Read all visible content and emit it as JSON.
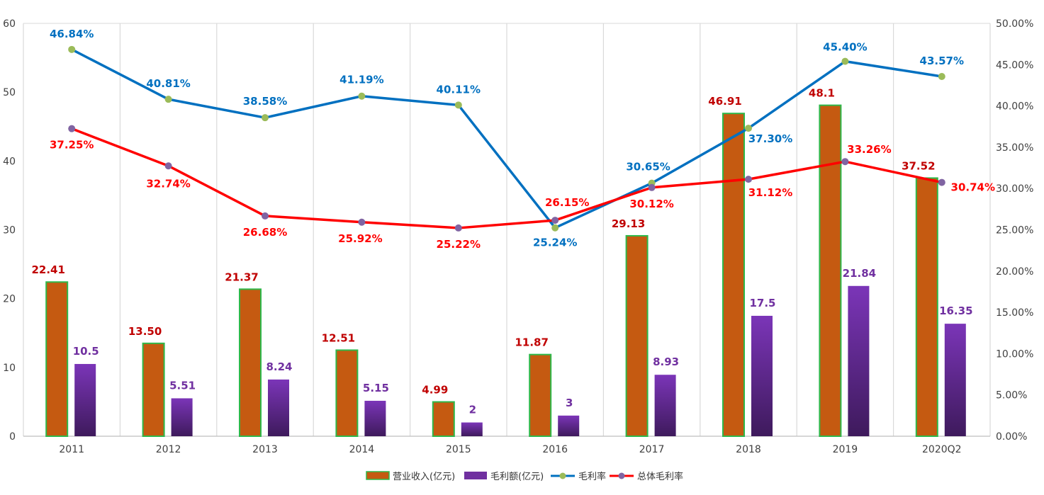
{
  "chart_data": {
    "type": "bar",
    "categories": [
      "2011",
      "2012",
      "2013",
      "2014",
      "2015",
      "2016",
      "2017",
      "2018",
      "2019",
      "2020Q2"
    ],
    "series": [
      {
        "name": "营业收入(亿元)",
        "kind": "bar",
        "axis": "left",
        "values": [
          22.41,
          13.5,
          21.37,
          12.51,
          4.99,
          11.87,
          29.13,
          46.91,
          48.1,
          37.52
        ],
        "labels": [
          "22.41",
          "13.50",
          "21.37",
          "12.51",
          "4.99",
          "11.87",
          "29.13",
          "46.91",
          "48.1",
          "37.52"
        ],
        "color": "#C55A11",
        "border": "#2EB84A",
        "label_color": "#C00000"
      },
      {
        "name": "毛利额(亿元)",
        "kind": "bar",
        "axis": "left",
        "values": [
          10.5,
          5.51,
          8.24,
          5.15,
          2,
          3,
          8.93,
          17.5,
          21.84,
          16.35
        ],
        "labels": [
          "10.5",
          "5.51",
          "8.24",
          "5.15",
          "2",
          "3",
          "8.93",
          "17.5",
          "21.84",
          "16.35"
        ],
        "color_top": "#7B35B8",
        "color_bottom": "#3E1A5C",
        "label_color": "#7030A0"
      },
      {
        "name": "毛利率",
        "kind": "line",
        "axis": "right",
        "values": [
          46.84,
          40.81,
          38.58,
          41.19,
          40.11,
          25.24,
          30.65,
          37.3,
          45.4,
          43.57
        ],
        "labels": [
          "46.84%",
          "40.81%",
          "38.58%",
          "41.19%",
          "40.11%",
          "25.24%",
          "30.65%",
          "37.30%",
          "45.40%",
          "43.57%"
        ],
        "color": "#0070C0",
        "marker_color": "#9BBB59",
        "label_color": "#0070C0"
      },
      {
        "name": "总体毛利率",
        "kind": "line",
        "axis": "right",
        "values": [
          37.25,
          32.74,
          26.68,
          25.92,
          25.22,
          26.15,
          30.12,
          31.12,
          33.26,
          30.74
        ],
        "labels": [
          "37.25%",
          "32.74%",
          "26.68%",
          "25.92%",
          "25.22%",
          "26.15%",
          "30.12%",
          "31.12%",
          "33.26%",
          "30.74%"
        ],
        "color": "#FF0000",
        "marker_color": "#8064A2",
        "label_color": "#FF0000"
      }
    ],
    "y_left": {
      "min": 0,
      "max": 60,
      "ticks": [
        "0",
        "10",
        "20",
        "30",
        "40",
        "50",
        "60"
      ]
    },
    "y_right": {
      "min": 0,
      "max": 50,
      "ticks": [
        "0.00%",
        "5.00%",
        "10.00%",
        "15.00%",
        "20.00%",
        "25.00%",
        "30.00%",
        "35.00%",
        "40.00%",
        "45.00%",
        "50.00%"
      ]
    },
    "grid": "vertical",
    "legend_position": "bottom",
    "title": "",
    "xlabel": "",
    "ylabel": ""
  }
}
